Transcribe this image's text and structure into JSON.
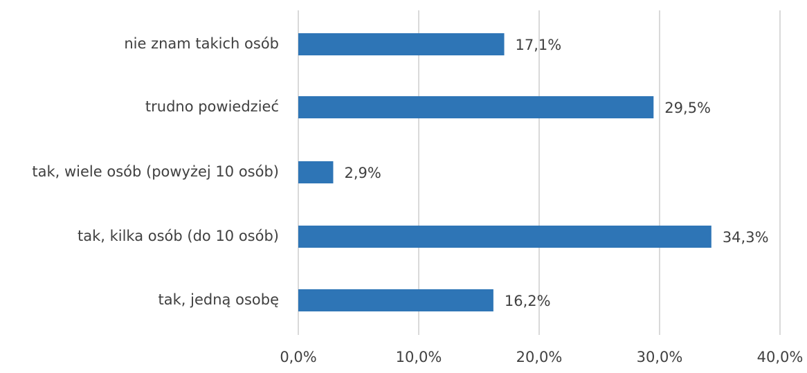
{
  "chart_data": {
    "type": "bar",
    "orientation": "horizontal",
    "categories": [
      "nie znam takich osób",
      "trudno powiedzieć",
      "tak, wiele osób (powyżej 10 osób)",
      "tak, kilka osób (do 10 osób)",
      "tak, jedną osobę"
    ],
    "values": [
      17.1,
      29.5,
      2.9,
      34.3,
      16.2
    ],
    "value_labels": [
      "17,1%",
      "29,5%",
      "2,9%",
      "34,3%",
      "16,2%"
    ],
    "xlim": [
      0,
      40
    ],
    "x_ticks": [
      0,
      10,
      20,
      30,
      40
    ],
    "x_tick_labels": [
      "0,0%",
      "10,0%",
      "20,0%",
      "30,0%",
      "40,0%"
    ],
    "title": "",
    "xlabel": "",
    "ylabel": "",
    "grid": true,
    "legend": "none",
    "colors": {
      "bar": "#2E75B6",
      "grid": "#D9D9D9",
      "text": "#404040"
    }
  }
}
